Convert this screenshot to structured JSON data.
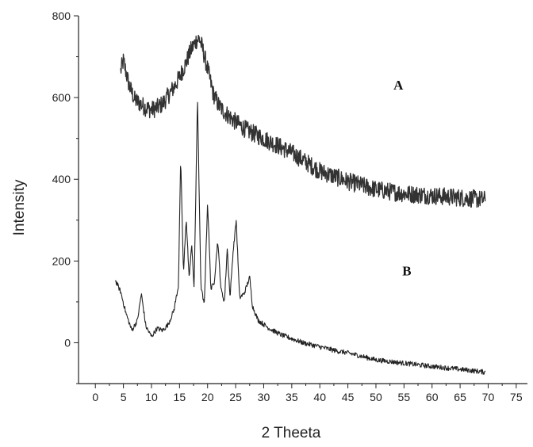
{
  "chart_data": {
    "type": "line",
    "title": "",
    "xlabel": "2 Theeta",
    "ylabel": "Intensity",
    "xlim": [
      -3,
      77
    ],
    "ylim": [
      -100,
      800
    ],
    "xticks": [
      0,
      5,
      10,
      15,
      20,
      25,
      30,
      35,
      40,
      45,
      50,
      55,
      60,
      65,
      70,
      75
    ],
    "yticks": [
      0,
      200,
      400,
      600,
      800
    ],
    "grid": false,
    "legend": "none",
    "series_labels": [
      "A",
      "B"
    ],
    "series": [
      {
        "name": "A",
        "color": "#333333",
        "noise": 22,
        "x": [
          4.5,
          5,
          6,
          7,
          8,
          9,
          10,
          11,
          12,
          13,
          14,
          15,
          16,
          17,
          18,
          18.5,
          19,
          20,
          21,
          22,
          23,
          25,
          27,
          30,
          35,
          40,
          45,
          50,
          55,
          60,
          65,
          69.5
        ],
        "y": [
          665,
          690,
          630,
          595,
          585,
          575,
          570,
          575,
          585,
          605,
          625,
          650,
          680,
          715,
          740,
          745,
          725,
          670,
          610,
          580,
          565,
          540,
          520,
          500,
          465,
          420,
          395,
          375,
          365,
          360,
          355,
          350
        ]
      },
      {
        "name": "B",
        "color": "#222222",
        "noise": 6,
        "x": [
          3.5,
          4.5,
          5.5,
          6.5,
          7.5,
          8.2,
          9,
          10,
          11,
          12,
          13,
          14,
          14.8,
          15.2,
          15.7,
          16.2,
          16.7,
          17.2,
          17.6,
          18.2,
          18.8,
          19.4,
          20,
          20.6,
          21.2,
          21.8,
          22.4,
          23,
          23.5,
          24,
          24.5,
          25.1,
          25.7,
          26.5,
          27.5,
          28,
          29,
          30,
          31,
          33,
          35,
          37,
          40,
          43,
          45,
          48,
          50,
          55,
          60,
          65,
          69.5
        ],
        "y": [
          155,
          125,
          70,
          30,
          55,
          120,
          40,
          15,
          35,
          30,
          45,
          80,
          140,
          450,
          170,
          305,
          160,
          240,
          130,
          600,
          140,
          90,
          345,
          130,
          150,
          250,
          130,
          100,
          230,
          110,
          215,
          300,
          110,
          120,
          160,
          90,
          55,
          45,
          35,
          20,
          10,
          0,
          -10,
          -20,
          -25,
          -35,
          -42,
          -50,
          -58,
          -65,
          -72
        ]
      }
    ]
  }
}
